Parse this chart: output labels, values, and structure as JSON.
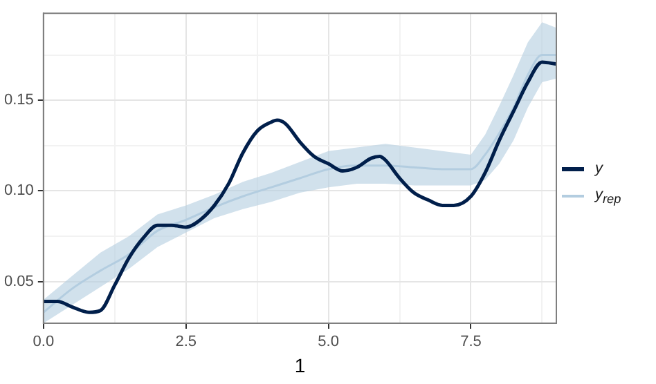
{
  "chart_data": {
    "type": "line",
    "xlabel": "1",
    "xlim": [
      0,
      9
    ],
    "ylim": [
      0.027,
      0.198
    ],
    "xticks": [
      {
        "value": 0,
        "label": "0.0"
      },
      {
        "value": 1.25,
        "label": null
      },
      {
        "value": 2.5,
        "label": "2.5"
      },
      {
        "value": 3.75,
        "label": null
      },
      {
        "value": 5,
        "label": "5.0"
      },
      {
        "value": 6.25,
        "label": null
      },
      {
        "value": 7.5,
        "label": "7.5"
      },
      {
        "value": 8.75,
        "label": null
      }
    ],
    "yticks": [
      {
        "value": 0.05,
        "label": "0.05"
      },
      {
        "value": 0.075,
        "label": null
      },
      {
        "value": 0.1,
        "label": "0.10"
      },
      {
        "value": 0.125,
        "label": null
      },
      {
        "value": 0.15,
        "label": "0.15"
      },
      {
        "value": 0.175,
        "label": null
      }
    ],
    "grid": true,
    "legend": "right",
    "marker": "none",
    "line_style": "solid",
    "series": [
      {
        "name": "y",
        "color": "#011f4b",
        "x": [
          0,
          0.25,
          0.5,
          0.8,
          1.0,
          1.25,
          1.5,
          1.75,
          2.0,
          2.25,
          2.5,
          2.75,
          3.0,
          3.25,
          3.5,
          3.75,
          4.0,
          4.1,
          4.25,
          4.5,
          4.75,
          5.0,
          5.25,
          5.5,
          5.75,
          5.9,
          6.0,
          6.25,
          6.5,
          6.75,
          7.0,
          7.2,
          7.5,
          7.75,
          8.0,
          8.25,
          8.5,
          8.75,
          9.0
        ],
        "values": [
          0.039,
          0.039,
          0.036,
          0.033,
          0.034,
          0.048,
          0.063,
          0.074,
          0.081,
          0.081,
          0.08,
          0.084,
          0.092,
          0.104,
          0.121,
          0.133,
          0.138,
          0.139,
          0.137,
          0.127,
          0.119,
          0.115,
          0.111,
          0.113,
          0.118,
          0.119,
          0.117,
          0.107,
          0.099,
          0.095,
          0.092,
          0.092,
          0.097,
          0.11,
          0.128,
          0.144,
          0.16,
          0.171,
          0.17
        ]
      },
      {
        "name": "y$_{rep}$",
        "color": "#b3cde0",
        "x": [
          0,
          0.5,
          1.0,
          1.5,
          2.0,
          2.5,
          3.0,
          3.5,
          4.0,
          4.5,
          5.0,
          5.5,
          6.0,
          6.5,
          7.0,
          7.5,
          7.75,
          8.0,
          8.25,
          8.5,
          8.75,
          9.0
        ],
        "values": [
          0.033,
          0.046,
          0.056,
          0.065,
          0.078,
          0.084,
          0.091,
          0.097,
          0.102,
          0.107,
          0.112,
          0.114,
          0.114,
          0.113,
          0.112,
          0.112,
          0.12,
          0.132,
          0.146,
          0.164,
          0.175,
          0.175
        ],
        "lower": [
          0.027,
          0.037,
          0.047,
          0.057,
          0.069,
          0.077,
          0.085,
          0.09,
          0.094,
          0.099,
          0.102,
          0.104,
          0.104,
          0.103,
          0.103,
          0.103,
          0.106,
          0.115,
          0.128,
          0.146,
          0.16,
          0.162
        ],
        "upper": [
          0.04,
          0.053,
          0.066,
          0.075,
          0.087,
          0.092,
          0.098,
          0.105,
          0.11,
          0.116,
          0.122,
          0.124,
          0.126,
          0.124,
          0.122,
          0.12,
          0.131,
          0.147,
          0.164,
          0.182,
          0.193,
          0.19
        ]
      }
    ]
  }
}
